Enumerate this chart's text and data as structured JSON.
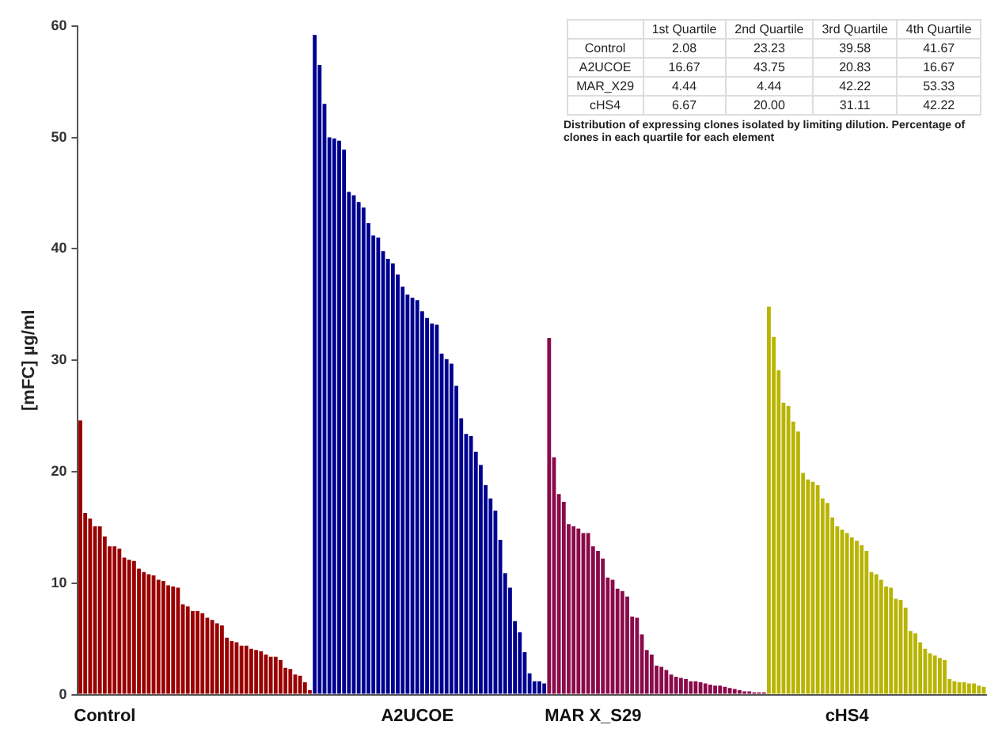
{
  "chart_data": {
    "type": "bar",
    "ylabel": "[mFC] µg/ml",
    "categories": [
      null,
      null,
      null,
      null,
      null,
      "Control",
      null,
      null,
      null,
      null,
      null,
      null,
      null,
      null,
      null,
      null,
      null,
      null,
      null,
      null,
      null,
      null,
      null,
      null,
      null,
      null,
      null,
      null,
      null,
      null,
      null,
      null,
      null,
      null,
      null,
      null,
      null,
      null,
      null,
      null,
      null,
      null,
      null,
      null,
      null,
      null,
      null,
      null,
      null,
      null,
      null,
      null,
      null,
      null,
      null,
      null,
      null,
      null,
      null,
      null,
      null,
      null,
      null,
      null,
      null,
      null,
      null,
      null,
      null,
      "A2UCOE",
      null,
      null,
      null,
      null,
      null,
      null,
      null,
      null,
      null,
      null,
      null,
      null,
      null,
      null,
      null,
      null,
      null,
      null,
      null,
      null,
      null,
      null,
      null,
      null,
      null,
      null,
      null,
      null,
      null,
      null,
      null,
      null,
      null,
      null,
      null,
      "MAR X_S29",
      null,
      null,
      null,
      null,
      null,
      null,
      null,
      null,
      null,
      null,
      null,
      null,
      null,
      null,
      null,
      null,
      null,
      null,
      null,
      null,
      null,
      null,
      null,
      null,
      null,
      null,
      null,
      null,
      null,
      null,
      null,
      null,
      null,
      null,
      null,
      null,
      null,
      null,
      null,
      null,
      null,
      null,
      null,
      null,
      null,
      null,
      null,
      null,
      null,
      null,
      null,
      "cHS4",
      null,
      null,
      null,
      null,
      null,
      null,
      null,
      null,
      null,
      null,
      null,
      null,
      null,
      null,
      null,
      null,
      null,
      null,
      null,
      null,
      null,
      null,
      null,
      null,
      null,
      null,
      null,
      null
    ],
    "values": [
      24.6,
      16.3,
      15.8,
      15.1,
      15.1,
      14.2,
      13.3,
      13.3,
      13.1,
      12.3,
      12.1,
      12.0,
      11.3,
      11.0,
      10.8,
      10.7,
      10.3,
      10.2,
      9.8,
      9.7,
      9.6,
      8.1,
      7.9,
      7.5,
      7.5,
      7.3,
      6.9,
      6.7,
      6.4,
      6.2,
      5.1,
      4.8,
      4.7,
      4.4,
      4.4,
      4.1,
      4.0,
      3.9,
      3.6,
      3.4,
      3.4,
      3.1,
      2.4,
      2.3,
      1.8,
      1.7,
      1.1,
      0.4,
      59.2,
      56.5,
      53.0,
      50.0,
      49.9,
      49.7,
      48.9,
      45.1,
      44.8,
      44.2,
      43.7,
      42.3,
      41.2,
      41.0,
      39.8,
      39.1,
      38.7,
      37.7,
      36.6,
      35.9,
      35.6,
      35.4,
      34.4,
      33.8,
      33.3,
      33.2,
      30.6,
      30.1,
      29.7,
      27.7,
      24.8,
      23.4,
      23.2,
      21.8,
      20.6,
      18.8,
      17.6,
      16.5,
      13.9,
      10.9,
      9.6,
      6.6,
      5.6,
      3.8,
      1.9,
      1.2,
      1.2,
      1.0,
      32.0,
      21.3,
      18.0,
      17.3,
      15.3,
      15.1,
      14.9,
      14.5,
      14.5,
      13.3,
      12.9,
      12.2,
      10.5,
      10.3,
      9.5,
      9.3,
      8.8,
      7.0,
      6.9,
      5.4,
      4.0,
      3.6,
      2.6,
      2.5,
      2.2,
      1.8,
      1.6,
      1.5,
      1.4,
      1.2,
      1.2,
      1.1,
      1.0,
      0.9,
      0.8,
      0.8,
      0.7,
      0.6,
      0.5,
      0.4,
      0.3,
      0.3,
      0.2,
      0.2,
      0.2,
      34.8,
      32.1,
      29.1,
      26.2,
      25.9,
      24.5,
      23.6,
      19.9,
      19.3,
      19.1,
      18.8,
      17.6,
      17.2,
      15.9,
      15.1,
      14.8,
      14.5,
      14.1,
      13.8,
      13.4,
      12.9,
      11.0,
      10.8,
      10.3,
      9.7,
      9.6,
      8.6,
      8.5,
      7.8,
      5.7,
      5.5,
      4.7,
      4.1,
      3.7,
      3.5,
      3.3,
      3.1,
      1.4,
      1.2,
      1.1,
      1.1,
      1.0,
      1.0,
      0.8,
      0.7
    ],
    "colors": [
      "#9a0000",
      "#9a0000",
      "#9a0000",
      "#9a0000",
      "#9a0000",
      "#9a0000",
      "#9a0000",
      "#9a0000",
      "#9a0000",
      "#9a0000",
      "#9a0000",
      "#9a0000",
      "#9a0000",
      "#9a0000",
      "#9a0000",
      "#9a0000",
      "#9a0000",
      "#9a0000",
      "#9a0000",
      "#9a0000",
      "#9a0000",
      "#9a0000",
      "#9a0000",
      "#9a0000",
      "#9a0000",
      "#9a0000",
      "#9a0000",
      "#9a0000",
      "#9a0000",
      "#9a0000",
      "#9a0000",
      "#9a0000",
      "#9a0000",
      "#9a0000",
      "#9a0000",
      "#9a0000",
      "#9a0000",
      "#9a0000",
      "#9a0000",
      "#9a0000",
      "#9a0000",
      "#9a0000",
      "#9a0000",
      "#9a0000",
      "#9a0000",
      "#9a0000",
      "#9a0000",
      "#9a0000",
      "#000090",
      "#000090",
      "#000090",
      "#000090",
      "#000090",
      "#000090",
      "#000090",
      "#000090",
      "#000090",
      "#000090",
      "#000090",
      "#000090",
      "#000090",
      "#000090",
      "#000090",
      "#000090",
      "#000090",
      "#000090",
      "#000090",
      "#000090",
      "#000090",
      "#000090",
      "#000090",
      "#000090",
      "#000090",
      "#000090",
      "#000090",
      "#000090",
      "#000090",
      "#000090",
      "#000090",
      "#000090",
      "#000090",
      "#000090",
      "#000090",
      "#000090",
      "#000090",
      "#000090",
      "#000090",
      "#000090",
      "#000090",
      "#000090",
      "#000090",
      "#000090",
      "#000090",
      "#000090",
      "#000090",
      "#000090",
      "#8a0a4a",
      "#8a0a4a",
      "#8a0a4a",
      "#8a0a4a",
      "#8a0a4a",
      "#8a0a4a",
      "#8a0a4a",
      "#8a0a4a",
      "#8a0a4a",
      "#8a0a4a",
      "#8a0a4a",
      "#8a0a4a",
      "#8a0a4a",
      "#8a0a4a",
      "#8a0a4a",
      "#8a0a4a",
      "#8a0a4a",
      "#8a0a4a",
      "#8a0a4a",
      "#8a0a4a",
      "#8a0a4a",
      "#8a0a4a",
      "#8a0a4a",
      "#8a0a4a",
      "#8a0a4a",
      "#8a0a4a",
      "#8a0a4a",
      "#8a0a4a",
      "#8a0a4a",
      "#8a0a4a",
      "#8a0a4a",
      "#8a0a4a",
      "#8a0a4a",
      "#8a0a4a",
      "#8a0a4a",
      "#8a0a4a",
      "#8a0a4a",
      "#8a0a4a",
      "#8a0a4a",
      "#8a0a4a",
      "#8a0a4a",
      "#8a0a4a",
      "#8a0a4a",
      "#8a0a4a",
      "#8a0a4a",
      "#b8b400",
      "#b8b400",
      "#b8b400",
      "#b8b400",
      "#b8b400",
      "#b8b400",
      "#b8b400",
      "#b8b400",
      "#b8b400",
      "#b8b400",
      "#b8b400",
      "#b8b400",
      "#b8b400",
      "#b8b400",
      "#b8b400",
      "#b8b400",
      "#b8b400",
      "#b8b400",
      "#b8b400",
      "#b8b400",
      "#b8b400",
      "#b8b400",
      "#b8b400",
      "#b8b400",
      "#b8b400",
      "#b8b400",
      "#b8b400",
      "#b8b400",
      "#b8b400",
      "#b8b400",
      "#b8b400",
      "#b8b400",
      "#b8b400",
      "#b8b400",
      "#b8b400",
      "#b8b400",
      "#b8b400",
      "#b8b400",
      "#b8b400",
      "#b8b400",
      "#b8b400",
      "#b8b400",
      "#b8b400",
      "#b8b400",
      "#b8b400"
    ],
    "ylim": [
      0,
      60
    ],
    "yticks": [
      0,
      10,
      20,
      30,
      40,
      50,
      60
    ],
    "grid": false,
    "legend": false,
    "annotations": [
      "1st Quartile",
      "2nd Quartile",
      "3rd Quartile",
      "4th Quartile",
      "Control",
      "2.08",
      "23.23",
      "39.58",
      "41.67",
      "A2UCOE",
      "16.67",
      "43.75",
      "20.83",
      "16.67",
      "MAR_X29",
      "4.44",
      "4.44",
      "42.22",
      "53.33",
      "cHS4",
      "6.67",
      "20.00",
      "31.11",
      "42.22",
      "Distribution of expressing clones isolated by limiting dilution. Percentage of clones in each quartile for each element"
    ]
  }
}
